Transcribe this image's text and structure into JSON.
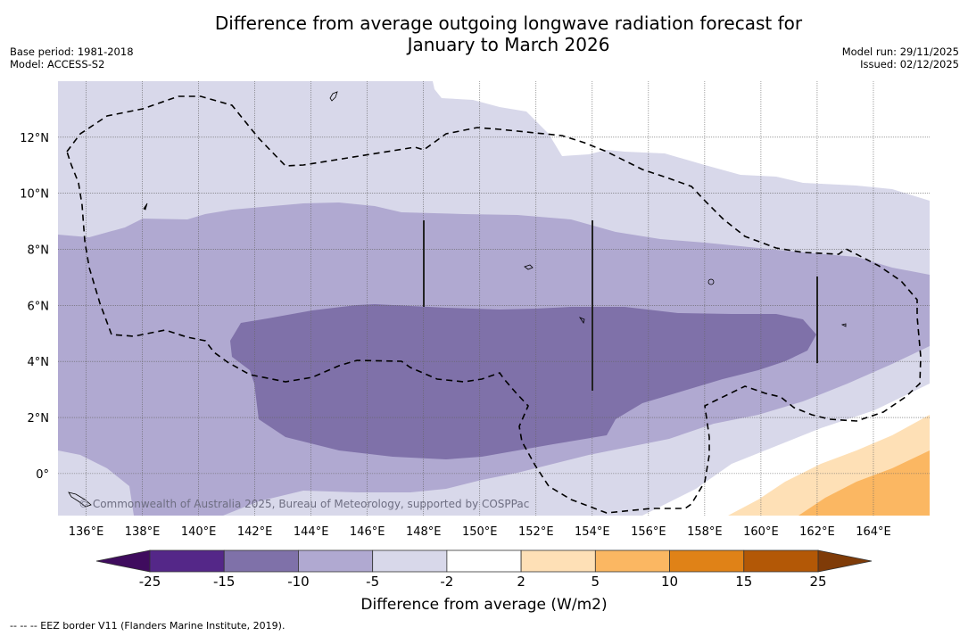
{
  "header": {
    "title_line1": "Difference from average outgoing longwave radiation forecast for",
    "title_line2": "January to March 2026",
    "base_period": "Base period: 1981-2018",
    "model": "Model: ACCESS-S2",
    "model_run": "Model run: 29/11/2025",
    "issued": "Issued: 02/12/2025"
  },
  "map": {
    "copyright": "© Commonwealth of Australia 2025, Bureau of Meteorology, supported by COSPPac",
    "lon_ticks": [
      "136°E",
      "138°E",
      "140°E",
      "142°E",
      "144°E",
      "146°E",
      "148°E",
      "150°E",
      "152°E",
      "154°E",
      "156°E",
      "158°E",
      "160°E",
      "162°E",
      "164°E"
    ],
    "lat_ticks": [
      "12°N",
      "10°N",
      "8°N",
      "6°N",
      "4°N",
      "2°N",
      "0°"
    ],
    "extent": {
      "lon_min": 135.0,
      "lon_max": 166.0,
      "lat_min": -1.5,
      "lat_max": 14.0
    }
  },
  "colorbar": {
    "title": "Difference from average (W/m2)",
    "tick_labels": [
      "-25",
      "-15",
      "-10",
      "-5",
      "-2",
      "2",
      "5",
      "10",
      "15",
      "25"
    ],
    "bins": [
      {
        "range": "< -25",
        "color": "#3f0c5e"
      },
      {
        "range": "-25 to -15",
        "color": "#542788"
      },
      {
        "range": "-15 to -10",
        "color": "#7f71a9"
      },
      {
        "range": "-10 to -5",
        "color": "#b0a9d1"
      },
      {
        "range": "-5 to -2",
        "color": "#d8d8ea"
      },
      {
        "range": "-2 to 2",
        "color": "#ffffff"
      },
      {
        "range": "2 to 5",
        "color": "#fee0b6"
      },
      {
        "range": "5 to 10",
        "color": "#fbb762"
      },
      {
        "range": "10 to 15",
        "color": "#e08217"
      },
      {
        "range": "15 to 25",
        "color": "#b35806"
      },
      {
        "range": "> 25",
        "color": "#7f3b08"
      }
    ]
  },
  "footnote": "--  --  -- EEZ border V11 (Flanders Marine Institute, 2019)."
}
